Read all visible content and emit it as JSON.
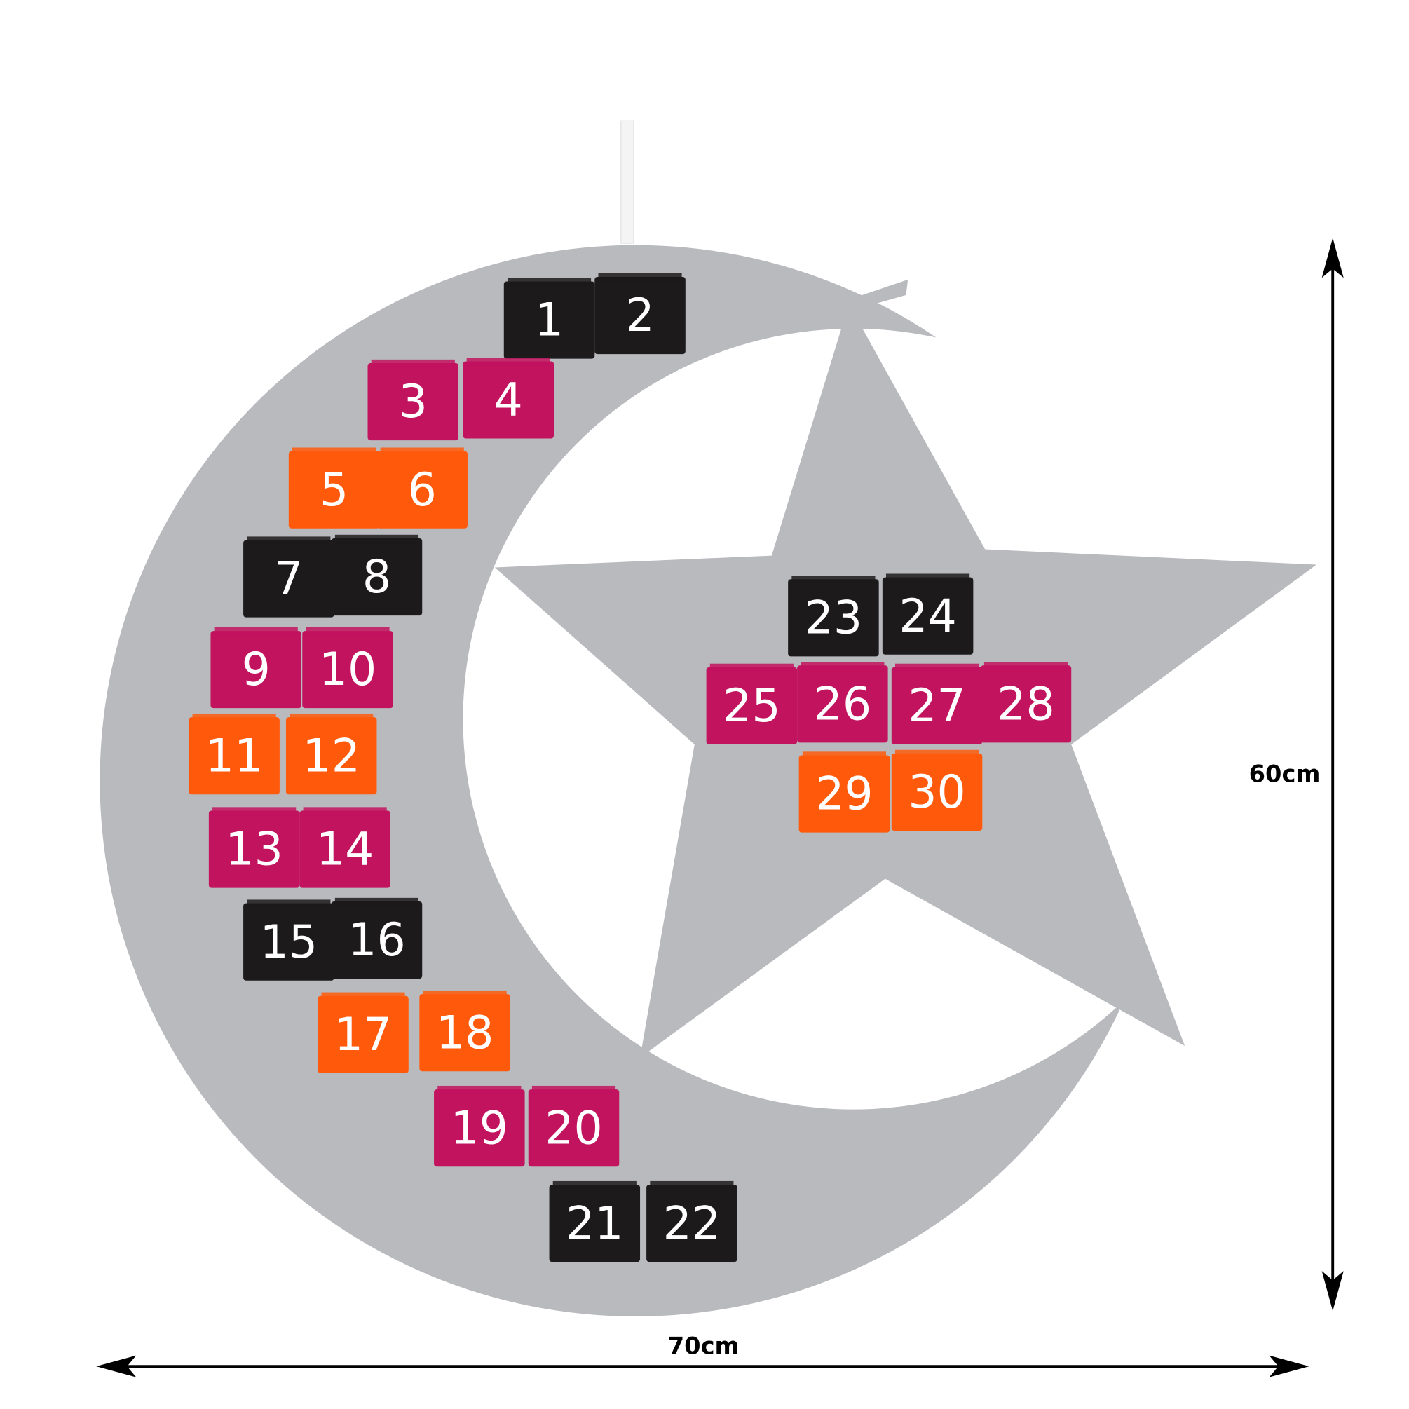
{
  "dimensions": {
    "width": "70cm",
    "height": "60cm"
  },
  "pockets": [
    {
      "label": "1",
      "color": "#1c1a1b"
    },
    {
      "label": "2",
      "color": "#1c1a1b"
    },
    {
      "label": "3",
      "color": "#c2135f"
    },
    {
      "label": "4",
      "color": "#c2135f"
    },
    {
      "label": "5",
      "color": "#ff5a0c"
    },
    {
      "label": "6",
      "color": "#ff5a0c"
    },
    {
      "label": "7",
      "color": "#1c1a1b"
    },
    {
      "label": "8",
      "color": "#1c1a1b"
    },
    {
      "label": "9",
      "color": "#c2135f"
    },
    {
      "label": "10",
      "color": "#c2135f"
    },
    {
      "label": "11",
      "color": "#ff5a0c"
    },
    {
      "label": "12",
      "color": "#ff5a0c"
    },
    {
      "label": "13",
      "color": "#c2135f"
    },
    {
      "label": "14",
      "color": "#c2135f"
    },
    {
      "label": "15",
      "color": "#1c1a1b"
    },
    {
      "label": "16",
      "color": "#1c1a1b"
    },
    {
      "label": "17",
      "color": "#ff5a0c"
    },
    {
      "label": "18",
      "color": "#ff5a0c"
    },
    {
      "label": "19",
      "color": "#c2135f"
    },
    {
      "label": "20",
      "color": "#c2135f"
    },
    {
      "label": "21",
      "color": "#1c1a1b"
    },
    {
      "label": "22",
      "color": "#1c1a1b"
    },
    {
      "label": "23",
      "color": "#1c1a1b"
    },
    {
      "label": "24",
      "color": "#1c1a1b"
    },
    {
      "label": "25",
      "color": "#c2135f"
    },
    {
      "label": "26",
      "color": "#c2135f"
    },
    {
      "label": "27",
      "color": "#c2135f"
    },
    {
      "label": "28",
      "color": "#c2135f"
    },
    {
      "label": "29",
      "color": "#ff5a0c"
    },
    {
      "label": "30",
      "color": "#ff5a0c"
    }
  ]
}
